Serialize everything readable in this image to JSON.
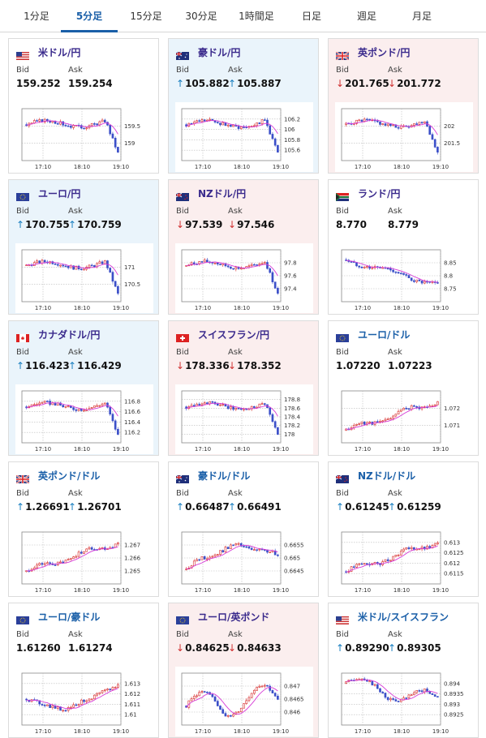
{
  "tabs": [
    {
      "label": "1分足",
      "active": false
    },
    {
      "label": "5分足",
      "active": true
    },
    {
      "label": "15分足",
      "active": false
    },
    {
      "label": "30分足",
      "active": false
    },
    {
      "label": "1時間足",
      "active": false
    },
    {
      "label": "日足",
      "active": false
    },
    {
      "label": "週足",
      "active": false
    },
    {
      "label": "月足",
      "active": false
    }
  ],
  "labels": {
    "bid": "Bid",
    "ask": "Ask"
  },
  "cards": [
    {
      "name": "米ドル/円",
      "flag": "us",
      "trend": "neutral",
      "bid": "159.252",
      "ask": "159.254",
      "arrow": "",
      "x_ticks": [
        "17:10",
        "18:10",
        "19:10"
      ],
      "y_ticks": [
        "159.5",
        "159"
      ],
      "shape": "drop"
    },
    {
      "name": "豪ドル/円",
      "flag": "au",
      "trend": "up",
      "bid": "105.882",
      "ask": "105.887",
      "arrow": "up",
      "x_ticks": [
        "17:10",
        "18:10",
        "19:10"
      ],
      "y_ticks": [
        "106.2",
        "106",
        "105.8",
        "105.6"
      ],
      "shape": "drop"
    },
    {
      "name": "英ポンド/円",
      "flag": "gb",
      "trend": "down",
      "bid": "201.765",
      "ask": "201.772",
      "arrow": "down",
      "x_ticks": [
        "17:10",
        "18:10",
        "19:10"
      ],
      "y_ticks": [
        "202",
        "201.5"
      ],
      "shape": "drop"
    },
    {
      "name": "ユーロ/円",
      "flag": "eu",
      "trend": "up",
      "bid": "170.755",
      "ask": "170.759",
      "arrow": "up",
      "x_ticks": [
        "17:10",
        "18:10",
        "19:10"
      ],
      "y_ticks": [
        "171",
        "170.5"
      ],
      "shape": "drop"
    },
    {
      "name": "NZドル/円",
      "flag": "nz",
      "trend": "down",
      "bid": "97.539",
      "ask": "97.546",
      "arrow": "down",
      "x_ticks": [
        "17:10",
        "18:10",
        "19:10"
      ],
      "y_ticks": [
        "97.8",
        "97.6",
        "97.4"
      ],
      "shape": "drop"
    },
    {
      "name": "ランド/円",
      "flag": "za",
      "trend": "neutral",
      "bid": "8.770",
      "ask": "8.779",
      "arrow": "",
      "x_ticks": [
        "17:10",
        "18:10",
        "19:10"
      ],
      "y_ticks": [
        "8.85",
        "8.8",
        "8.75"
      ],
      "shape": "decline"
    },
    {
      "name": "カナダドル/円",
      "flag": "ca",
      "trend": "up",
      "bid": "116.423",
      "ask": "116.429",
      "arrow": "up",
      "x_ticks": [
        "17:10",
        "18:10",
        "19:10"
      ],
      "y_ticks": [
        "116.8",
        "116.6",
        "116.4",
        "116.2"
      ],
      "shape": "drop"
    },
    {
      "name": "スイスフラン/円",
      "flag": "ch",
      "trend": "down",
      "bid": "178.336",
      "ask": "178.352",
      "arrow": "down",
      "x_ticks": [
        "17:10",
        "18:10",
        "19:10"
      ],
      "y_ticks": [
        "178.8",
        "178.6",
        "178.4",
        "178.2",
        "178"
      ],
      "shape": "drop"
    },
    {
      "name": "ユーロ/ドル",
      "flag": "eu",
      "trend": "neutral",
      "bid": "1.07220",
      "ask": "1.07223",
      "arrow": "",
      "x_ticks": [
        "17:10",
        "18:10",
        "19:10"
      ],
      "y_ticks": [
        "1.072",
        "1.071"
      ],
      "shape": "rise"
    },
    {
      "name": "英ポンド/ドル",
      "flag": "gb",
      "trend": "neutral",
      "bid": "1.26691",
      "ask": "1.26701",
      "arrow": "up",
      "x_ticks": [
        "17:10",
        "18:10",
        "19:10"
      ],
      "y_ticks": [
        "1.267",
        "1.266",
        "1.265"
      ],
      "shape": "rise"
    },
    {
      "name": "豪ドル/ドル",
      "flag": "au",
      "trend": "neutral",
      "bid": "0.66487",
      "ask": "0.66491",
      "arrow": "up",
      "x_ticks": [
        "17:10",
        "18:10",
        "19:10"
      ],
      "y_ticks": [
        "0.6655",
        "0.665",
        "0.6645"
      ],
      "shape": "humprise"
    },
    {
      "name": "NZドル/ドル",
      "flag": "nz",
      "trend": "neutral",
      "bid": "0.61245",
      "ask": "0.61259",
      "arrow": "up",
      "x_ticks": [
        "17:10",
        "18:10",
        "19:10"
      ],
      "y_ticks": [
        "0.613",
        "0.6125",
        "0.612",
        "0.6115"
      ],
      "shape": "rise"
    },
    {
      "name": "ユーロ/豪ドル",
      "flag": "eu",
      "trend": "neutral",
      "bid": "1.61260",
      "ask": "1.61274",
      "arrow": "",
      "x_ticks": [
        "17:10",
        "18:10",
        "19:10"
      ],
      "y_ticks": [
        "1.613",
        "1.612",
        "1.611",
        "1.61"
      ],
      "shape": "vrise"
    },
    {
      "name": "ユーロ/英ポンド",
      "flag": "eu",
      "trend": "down",
      "bid": "0.84625",
      "ask": "0.84633",
      "arrow": "down",
      "x_ticks": [
        "17:10",
        "18:10",
        "19:10"
      ],
      "y_ticks": [
        "0.847",
        "0.8465",
        "0.846"
      ],
      "shape": "wave"
    },
    {
      "name": "米ドル/スイスフラン",
      "flag": "us",
      "trend": "neutral",
      "bid": "0.89290",
      "ask": "0.89305",
      "arrow": "up",
      "x_ticks": [
        "17:10",
        "18:10",
        "19:10"
      ],
      "y_ticks": [
        "0.894",
        "0.8935",
        "0.893",
        "0.8925"
      ],
      "shape": "fall"
    }
  ],
  "colors": {
    "candle_up": "#3b4fc8",
    "candle_down": "#d62828",
    "ma_line": "#d63ad6",
    "grid": "#bbbbbb",
    "accent": "#1a5fa8"
  }
}
